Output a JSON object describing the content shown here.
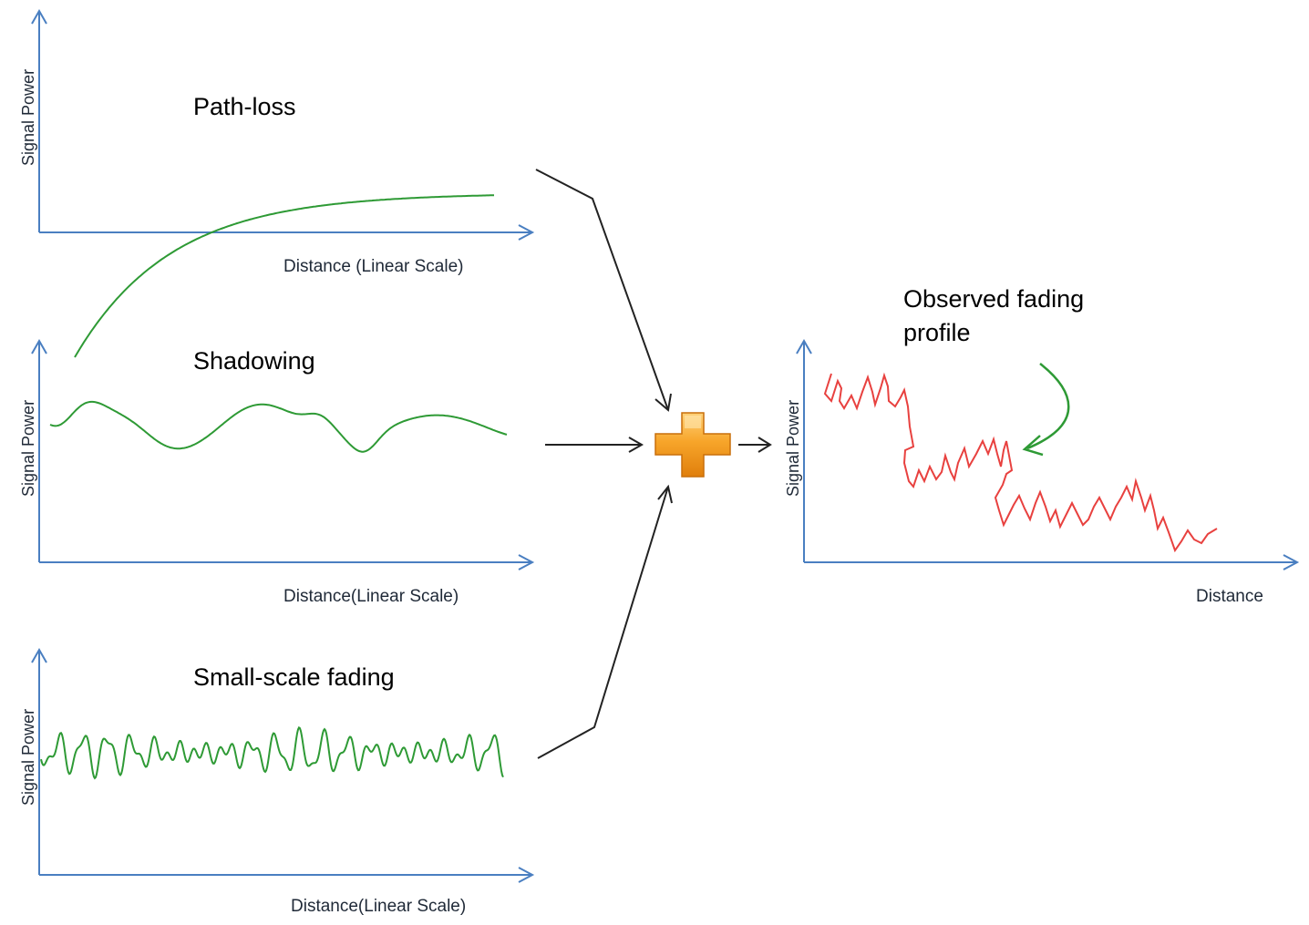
{
  "colors": {
    "axis": "#4a7fc1",
    "component_curve": "#2e9a35",
    "observed_curve": "#e8413f",
    "pointer_arrow": "#2e9a35",
    "connector": "#222222",
    "plus_fill": "#f39a1e",
    "plus_edge": "#c96f0a"
  },
  "panels": {
    "path_loss": {
      "title": "Path-loss",
      "ylabel": "Signal Power",
      "xlabel": "Distance (Linear Scale)",
      "shape": "exponential-decay"
    },
    "shadowing": {
      "title": "Shadowing",
      "ylabel": "Signal Power",
      "xlabel": "Distance(Linear Scale)",
      "shape": "slow-wave"
    },
    "small_scale": {
      "title": "Small-scale fading",
      "ylabel": "Signal Power",
      "xlabel": "Distance(Linear Scale)",
      "shape": "fast-wave"
    },
    "observed": {
      "title_line1": "Observed fading",
      "title_line2": "profile",
      "ylabel": "Signal Power",
      "xlabel": "Distance",
      "shape": "decaying-jagged"
    }
  },
  "combiner": {
    "icon": "plus-icon"
  }
}
